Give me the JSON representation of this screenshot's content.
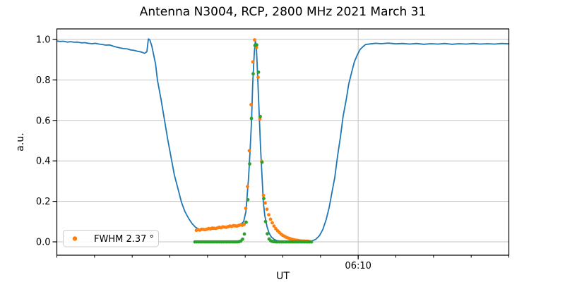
{
  "chart_data": {
    "type": "line+scatter",
    "title": "Antenna N3004, RCP, 2800 MHz 2021 March 31",
    "xlabel": "UT",
    "ylabel": "a.u.",
    "x_axis": {
      "unit": "minutes after 06:00 UT",
      "range": [
        2,
        14
      ],
      "minor_ticks": [
        2,
        3,
        4,
        5,
        6,
        7,
        8,
        9,
        10,
        11,
        12,
        13,
        14
      ],
      "major_ticks": [
        {
          "t": 10,
          "label": "06:10"
        }
      ]
    },
    "y_axis": {
      "range": [
        -0.066,
        1.052
      ],
      "ticks": [
        0.0,
        0.2,
        0.4,
        0.6,
        0.8,
        1.0
      ],
      "tick_labels": [
        "0.0",
        "0.2",
        "0.4",
        "0.6",
        "0.8",
        "1.0"
      ]
    },
    "grid": {
      "horizontal": true,
      "vertical": "major-ticks-only",
      "color": "#c2c2c2"
    },
    "legend": {
      "label": "FWHM 2.37 °",
      "marker_color": "#ff7f0e",
      "position": "lower-left"
    },
    "series": [
      {
        "name": "antenna-scan",
        "type": "line",
        "color": "#1f77b4",
        "points": [
          [
            2.0,
            0.992
          ],
          [
            2.09,
            0.99
          ],
          [
            2.18,
            0.991
          ],
          [
            2.28,
            0.987
          ],
          [
            2.37,
            0.989
          ],
          [
            2.46,
            0.986
          ],
          [
            2.55,
            0.987
          ],
          [
            2.65,
            0.983
          ],
          [
            2.74,
            0.984
          ],
          [
            2.83,
            0.981
          ],
          [
            2.93,
            0.979
          ],
          [
            3.02,
            0.981
          ],
          [
            3.12,
            0.977
          ],
          [
            3.21,
            0.975
          ],
          [
            3.3,
            0.972
          ],
          [
            3.4,
            0.973
          ],
          [
            3.49,
            0.967
          ],
          [
            3.58,
            0.962
          ],
          [
            3.68,
            0.958
          ],
          [
            3.77,
            0.955
          ],
          [
            3.87,
            0.953
          ],
          [
            3.96,
            0.948
          ],
          [
            4.05,
            0.946
          ],
          [
            4.15,
            0.941
          ],
          [
            4.24,
            0.938
          ],
          [
            4.33,
            0.931
          ],
          [
            4.39,
            0.94
          ],
          [
            4.43,
            1.003
          ],
          [
            4.47,
            0.997
          ],
          [
            4.52,
            0.968
          ],
          [
            4.62,
            0.88
          ],
          [
            4.67,
            0.8
          ],
          [
            4.77,
            0.7
          ],
          [
            4.86,
            0.6
          ],
          [
            4.95,
            0.5
          ],
          [
            5.03,
            0.42
          ],
          [
            5.12,
            0.33
          ],
          [
            5.22,
            0.26
          ],
          [
            5.31,
            0.195
          ],
          [
            5.4,
            0.15
          ],
          [
            5.5,
            0.115
          ],
          [
            5.59,
            0.09
          ],
          [
            5.68,
            0.072
          ],
          [
            5.78,
            0.063
          ],
          [
            5.93,
            0.06
          ],
          [
            6.12,
            0.062
          ],
          [
            6.3,
            0.066
          ],
          [
            6.49,
            0.071
          ],
          [
            6.68,
            0.076
          ],
          [
            6.87,
            0.083
          ],
          [
            6.96,
            0.1
          ],
          [
            7.02,
            0.15
          ],
          [
            7.05,
            0.22
          ],
          [
            7.09,
            0.32
          ],
          [
            7.13,
            0.45
          ],
          [
            7.17,
            0.6
          ],
          [
            7.2,
            0.78
          ],
          [
            7.24,
            0.93
          ],
          [
            7.27,
            0.995
          ],
          [
            7.3,
            0.95
          ],
          [
            7.33,
            0.82
          ],
          [
            7.37,
            0.64
          ],
          [
            7.41,
            0.46
          ],
          [
            7.45,
            0.31
          ],
          [
            7.48,
            0.2
          ],
          [
            7.52,
            0.13
          ],
          [
            7.58,
            0.075
          ],
          [
            7.63,
            0.045
          ],
          [
            7.69,
            0.025
          ],
          [
            7.77,
            0.012
          ],
          [
            7.84,
            0.006
          ],
          [
            7.95,
            0.003
          ],
          [
            8.08,
            0.002
          ],
          [
            8.27,
            0.001
          ],
          [
            8.46,
            0.001
          ],
          [
            8.65,
            0.002
          ],
          [
            8.78,
            0.005
          ],
          [
            8.87,
            0.012
          ],
          [
            8.97,
            0.03
          ],
          [
            9.06,
            0.06
          ],
          [
            9.15,
            0.11
          ],
          [
            9.23,
            0.17
          ],
          [
            9.3,
            0.24
          ],
          [
            9.38,
            0.32
          ],
          [
            9.45,
            0.42
          ],
          [
            9.53,
            0.52
          ],
          [
            9.6,
            0.62
          ],
          [
            9.68,
            0.7
          ],
          [
            9.75,
            0.78
          ],
          [
            9.83,
            0.84
          ],
          [
            9.9,
            0.89
          ],
          [
            9.98,
            0.925
          ],
          [
            10.05,
            0.95
          ],
          [
            10.13,
            0.965
          ],
          [
            10.2,
            0.975
          ],
          [
            10.33,
            0.978
          ],
          [
            10.47,
            0.981
          ],
          [
            10.61,
            0.979
          ],
          [
            10.8,
            0.982
          ],
          [
            10.99,
            0.978
          ],
          [
            11.18,
            0.98
          ],
          [
            11.37,
            0.977
          ],
          [
            11.55,
            0.98
          ],
          [
            11.74,
            0.976
          ],
          [
            11.93,
            0.979
          ],
          [
            12.12,
            0.977
          ],
          [
            12.3,
            0.98
          ],
          [
            12.49,
            0.976
          ],
          [
            12.68,
            0.979
          ],
          [
            12.87,
            0.977
          ],
          [
            13.05,
            0.98
          ],
          [
            13.24,
            0.977
          ],
          [
            13.43,
            0.979
          ],
          [
            13.62,
            0.977
          ],
          [
            13.81,
            0.98
          ],
          [
            14.0,
            0.978
          ]
        ]
      },
      {
        "name": "measured-peak",
        "type": "scatter",
        "color": "#ff7f0e",
        "t_start": 5.703,
        "t_step": 0.046875,
        "values": [
          0.057,
          0.06,
          0.058,
          0.062,
          0.061,
          0.06,
          0.063,
          0.066,
          0.064,
          0.068,
          0.067,
          0.066,
          0.069,
          0.072,
          0.07,
          0.074,
          0.073,
          0.072,
          0.075,
          0.078,
          0.076,
          0.08,
          0.079,
          0.078,
          0.081,
          0.084,
          0.082,
          0.086,
          0.166,
          0.273,
          0.45,
          0.678,
          0.889,
          0.998,
          0.96,
          0.813,
          0.607,
          0.398,
          0.23,
          0.192,
          0.161,
          0.134,
          0.112,
          0.094,
          0.078,
          0.065,
          0.055,
          0.046,
          0.038,
          0.032,
          0.027,
          0.022,
          0.019,
          0.016,
          0.013,
          0.011,
          0.009,
          0.008,
          0.006,
          0.005,
          0.004,
          0.004,
          0.003,
          0.003,
          0.002
        ]
      },
      {
        "name": "gaussian-fit",
        "type": "scatter",
        "color": "#2ca02c",
        "t_start": 5.666,
        "t_step": 0.046875,
        "values": [
          0,
          0,
          0,
          0,
          0,
          0,
          0,
          0,
          0,
          0,
          0,
          0,
          0,
          0,
          0,
          0,
          0,
          0,
          0,
          0,
          0,
          0,
          0,
          0,
          0,
          0.001,
          0.004,
          0.013,
          0.039,
          0.097,
          0.208,
          0.385,
          0.61,
          0.83,
          0.97,
          0.973,
          0.838,
          0.619,
          0.393,
          0.214,
          0.1,
          0.04,
          0.014,
          0.005,
          0.002,
          0.001,
          0,
          0,
          0,
          0,
          0,
          0,
          0,
          0,
          0,
          0,
          0,
          0,
          0,
          0,
          0,
          0,
          0,
          0,
          0,
          0,
          0
        ]
      }
    ]
  }
}
